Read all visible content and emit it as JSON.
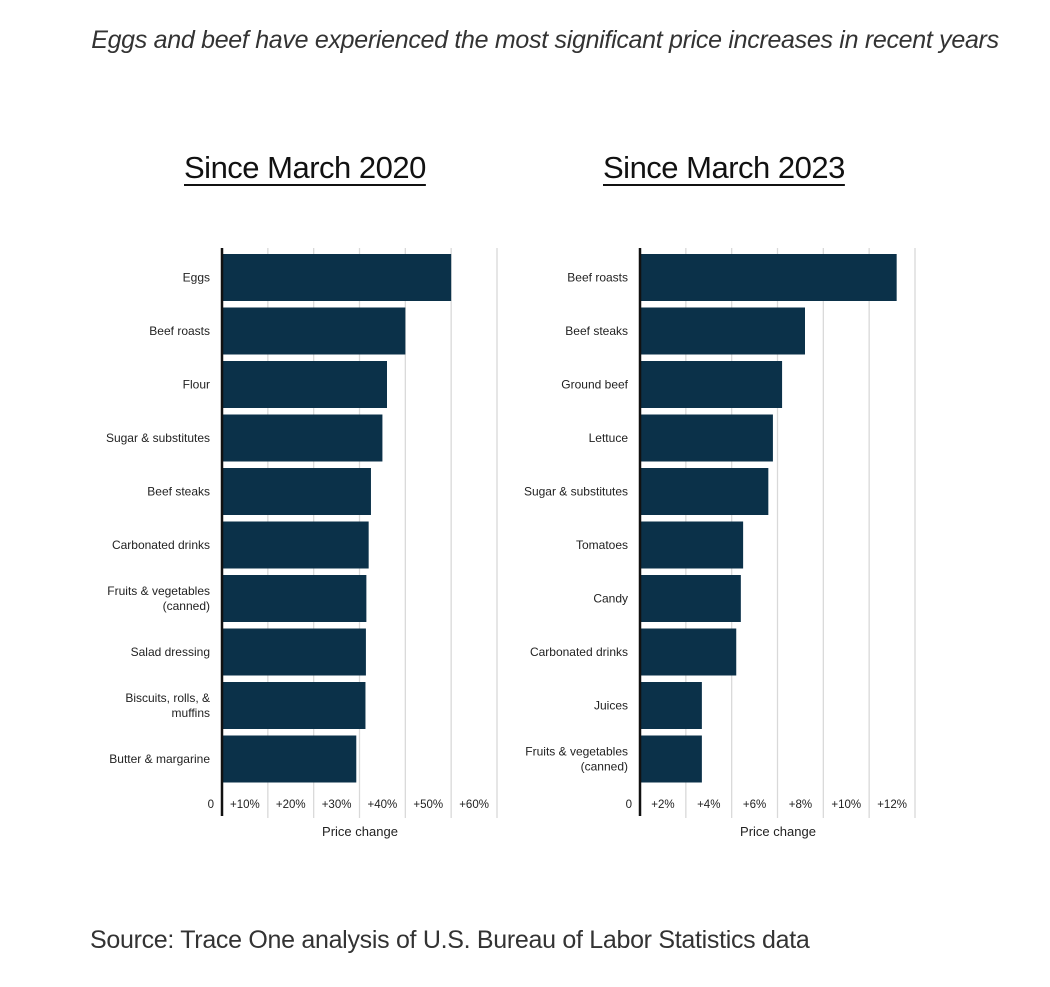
{
  "headline": "Eggs and beef have experienced the most significant price increases in recent years",
  "source": "Source: Trace One analysis of U.S. Bureau of Labor Statistics data",
  "colors": {
    "bar": "#0b3149",
    "grid": "#d9d9d9",
    "axis": "#111111"
  },
  "chart_data": [
    {
      "type": "bar",
      "orientation": "horizontal",
      "title": "Since March 2020",
      "xlabel": "Price change",
      "ylabel": "",
      "xlim": [
        0,
        60
      ],
      "grid": true,
      "xticks": [
        0,
        10,
        20,
        30,
        40,
        50,
        60
      ],
      "xtick_labels": [
        "0",
        "+10%",
        "+20%",
        "+30%",
        "+40%",
        "+50%",
        "+60%"
      ],
      "categories": [
        "Eggs",
        "Beef roasts",
        "Flour",
        "Sugar & substitutes",
        "Beef steaks",
        "Carbonated drinks",
        "Fruits & vegetables (canned)",
        "Salad dressing",
        "Biscuits, rolls, & muffins",
        "Butter & margarine"
      ],
      "category_lines": [
        [
          "Eggs"
        ],
        [
          "Beef roasts"
        ],
        [
          "Flour"
        ],
        [
          "Sugar & substitutes"
        ],
        [
          "Beef steaks"
        ],
        [
          "Carbonated drinks"
        ],
        [
          "Fruits & vegetables",
          "(canned)"
        ],
        [
          "Salad dressing"
        ],
        [
          "Biscuits, rolls, &",
          "muffins"
        ],
        [
          "Butter & margarine"
        ]
      ],
      "values": [
        50,
        40,
        36,
        35,
        32.5,
        32,
        31.5,
        31.4,
        31.3,
        29.3
      ]
    },
    {
      "type": "bar",
      "orientation": "horizontal",
      "title": "Since March 2023",
      "xlabel": "Price change",
      "ylabel": "",
      "xlim": [
        0,
        12
      ],
      "grid": true,
      "xticks": [
        0,
        2,
        4,
        6,
        8,
        10,
        12
      ],
      "xtick_labels": [
        "0",
        "+2%",
        "+4%",
        "+6%",
        "+8%",
        "+10%",
        "+12%"
      ],
      "categories": [
        "Beef roasts",
        "Beef steaks",
        "Ground beef",
        "Lettuce",
        "Sugar & substitutes",
        "Tomatoes",
        "Candy",
        "Carbonated drinks",
        "Juices",
        "Fruits & vegetables (canned)"
      ],
      "category_lines": [
        [
          "Beef roasts"
        ],
        [
          "Beef steaks"
        ],
        [
          "Ground beef"
        ],
        [
          "Lettuce"
        ],
        [
          "Sugar & substitutes"
        ],
        [
          "Tomatoes"
        ],
        [
          "Candy"
        ],
        [
          "Carbonated drinks"
        ],
        [
          "Juices"
        ],
        [
          "Fruits & vegetables",
          "(canned)"
        ]
      ],
      "values": [
        11.2,
        7.2,
        6.2,
        5.8,
        5.6,
        4.5,
        4.4,
        4.2,
        2.7,
        2.7
      ]
    }
  ]
}
